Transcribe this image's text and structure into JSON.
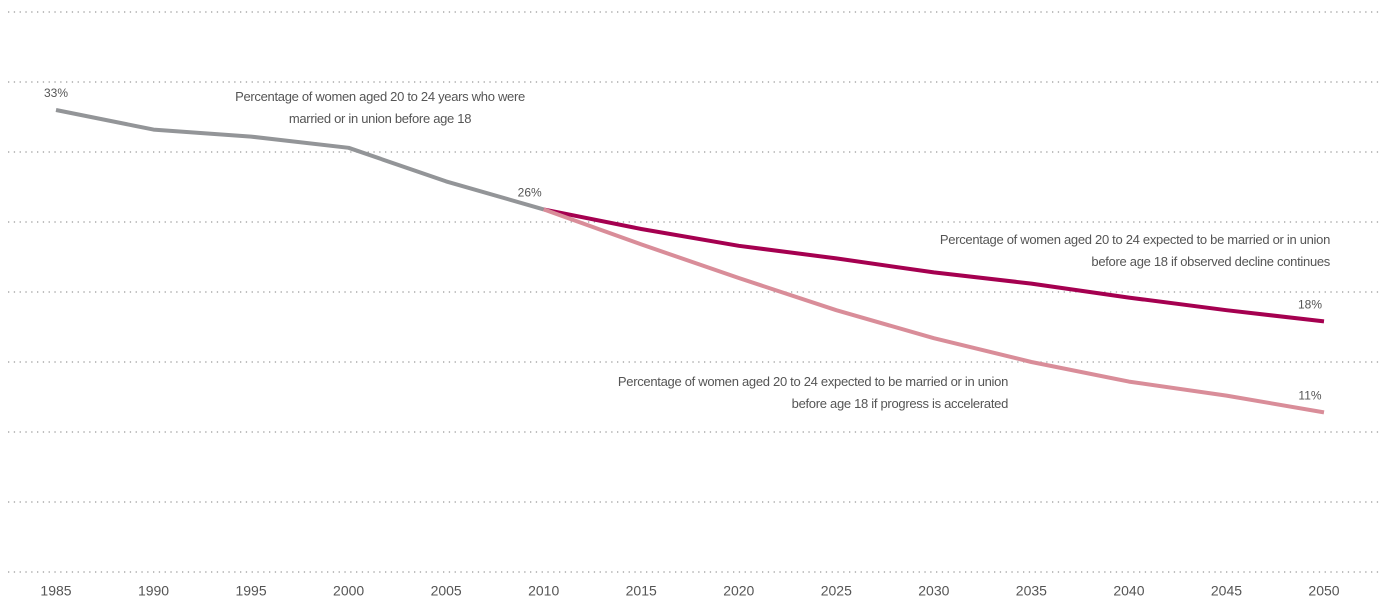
{
  "chart_data": {
    "type": "line",
    "xlim": [
      1985,
      2050
    ],
    "xticks": [
      1985,
      1990,
      1995,
      2000,
      2005,
      2010,
      2015,
      2020,
      2025,
      2030,
      2035,
      2040,
      2045,
      2050
    ],
    "ylim": [
      0,
      40
    ],
    "yticks": [
      0,
      5,
      10,
      15,
      20,
      25,
      30,
      35,
      40
    ],
    "grid": true,
    "series": [
      {
        "name": "Percentage of women aged 20 to 24 years who were married or in union before age 18",
        "color": "#939598",
        "x": [
          1985,
          1990,
          1995,
          2000,
          2005,
          2010
        ],
        "values": [
          33,
          31.6,
          31.1,
          30.3,
          27.9,
          25.9
        ],
        "value_labels": [
          "33%",
          null,
          null,
          null,
          null,
          "26%"
        ]
      },
      {
        "name": "Percentage of women aged 20 to 24 expected to be married or in union before age 18 if observed decline continues",
        "color": "#a50050",
        "x": [
          2010,
          2015,
          2020,
          2025,
          2030,
          2035,
          2040,
          2045,
          2050
        ],
        "values": [
          25.9,
          24.5,
          23.3,
          22.4,
          21.4,
          20.6,
          19.6,
          18.7,
          17.9
        ],
        "value_labels": [
          null,
          null,
          null,
          null,
          null,
          null,
          null,
          null,
          "18%"
        ]
      },
      {
        "name": "Percentage of women aged 20 to 24 expected to be married or in union before age 18 if progress is accelerated",
        "color": "#d98d99",
        "x": [
          2010,
          2015,
          2020,
          2025,
          2030,
          2035,
          2040,
          2045,
          2050
        ],
        "values": [
          25.9,
          23.4,
          21,
          18.7,
          16.7,
          15,
          13.6,
          12.6,
          11.4
        ],
        "value_labels": [
          null,
          null,
          null,
          null,
          null,
          null,
          null,
          null,
          "11%"
        ]
      }
    ]
  }
}
